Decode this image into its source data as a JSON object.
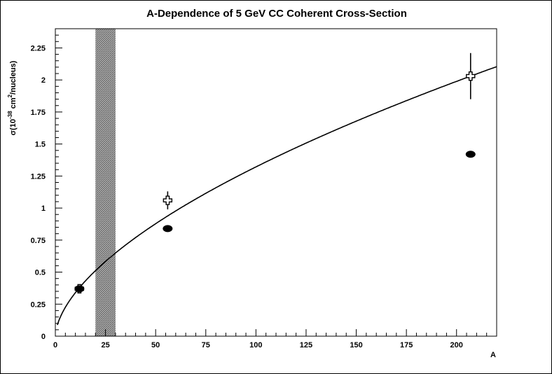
{
  "chart_data": {
    "type": "scatter",
    "title": "A-Dependence of 5 GeV CC Coherent Cross-Section",
    "xlabel": "A",
    "ylabel": {
      "prefix": "σ(10",
      "exp1": "-38",
      "mid": " cm",
      "exp2": "2",
      "suffix": "/nucleus)"
    },
    "xlim": [
      0,
      220
    ],
    "ylim": [
      0,
      2.4
    ],
    "xticks": [
      0,
      25,
      50,
      75,
      100,
      125,
      150,
      175,
      200
    ],
    "xtick_labels": [
      "0",
      "25",
      "50",
      "75",
      "100",
      "125",
      "150",
      "175",
      "200"
    ],
    "yticks": [
      0,
      0.25,
      0.5,
      0.75,
      1,
      1.25,
      1.5,
      1.75,
      2,
      2.25
    ],
    "ytick_labels": [
      "0",
      "0.25",
      "0.5",
      "0.75",
      "1",
      "1.25",
      "1.5",
      "1.75",
      "2",
      "2.25"
    ],
    "shaded_band": {
      "x_range": [
        20,
        30
      ]
    },
    "series": [
      {
        "marker": "open-cross",
        "points": [
          {
            "x": 12,
            "y": 0.37,
            "yerr": 0.02
          },
          {
            "x": 56,
            "y": 1.06,
            "yerr": 0.07
          },
          {
            "x": 207,
            "y": 2.03,
            "yerr": 0.18
          }
        ]
      },
      {
        "marker": "filled-circle",
        "points": [
          {
            "x": 12,
            "y": 0.37
          },
          {
            "x": 56,
            "y": 0.84
          },
          {
            "x": 207,
            "y": 1.42
          }
        ]
      }
    ],
    "fit_curve": {
      "form": "power",
      "coefficient": 0.0873,
      "exponent": 0.59
    },
    "colors": {
      "line": "#000000",
      "band": "#8c8c8c"
    }
  }
}
